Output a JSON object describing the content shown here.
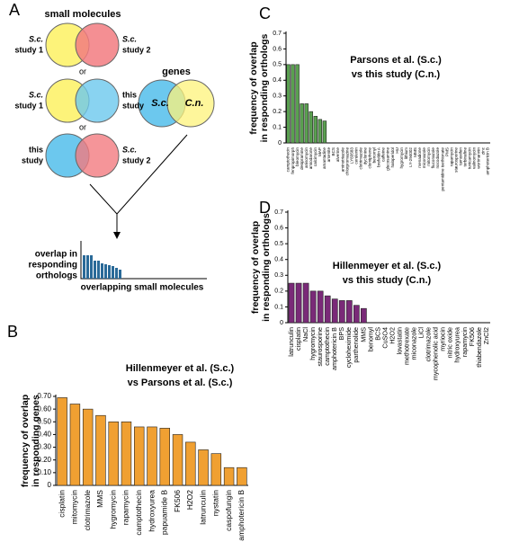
{
  "panel_a": {
    "label": "A",
    "small_molecules": "small molecules",
    "or": "or",
    "venn": [
      {
        "left": [
          "S.c.",
          "study 1"
        ],
        "right": [
          "S.c.",
          "study 2"
        ]
      },
      {
        "left": [
          "S.c.",
          "study 1"
        ],
        "right": [
          "this",
          "study"
        ]
      },
      {
        "left": [
          "this",
          "study"
        ],
        "right": [
          "S.c.",
          "study 2"
        ]
      }
    ],
    "genes": "genes",
    "genes_left": "S.c.",
    "genes_right": "C.n.",
    "ylabel": [
      "overlap in",
      "responding",
      "orthologs"
    ],
    "xlabel": "overlapping small molecules"
  },
  "chart_data": [
    {
      "type": "bar",
      "label": "B",
      "title": [
        "Hillenmeyer et al. (S.c.)",
        "vs Parsons et al. (S.c.)"
      ],
      "ylabel": [
        "frequency of overlap",
        "in responding genes"
      ],
      "color": "#f0a032",
      "categories": [
        "cisplatin",
        "mitomycin",
        "clotrimazole",
        "MMS",
        "hygromycin",
        "rapamycin",
        "camptothecin",
        "hydroxyurea",
        "papuamide B",
        "FK506",
        "H2O2",
        "latrunculin",
        "nystatin",
        "caspofungin",
        "amphotericin B"
      ],
      "category_colors": [
        "#3aa0d8",
        "#3aa0d8",
        "#3aa0d8",
        "#3aa0d8",
        "#3aa0d8",
        "#3aa0d8",
        "#3aa0d8",
        "#3aa0d8",
        "#3aa0d8",
        "#3aa0d8",
        "#3aa0d8",
        "#3aa0d8",
        "#3aa0d8",
        "#000000",
        "#000000"
      ],
      "values": [
        0.69,
        0.64,
        0.6,
        0.55,
        0.5,
        0.5,
        0.46,
        0.46,
        0.45,
        0.4,
        0.34,
        0.28,
        0.25,
        0.14,
        0.14
      ],
      "ylim": [
        0,
        0.7
      ],
      "yticks": [
        0,
        {
          "value": 0.1,
          "label": "0.10"
        },
        {
          "value": 0.2,
          "label": "0.20"
        },
        {
          "value": 0.3,
          "label": "0.30"
        },
        {
          "value": 0.4,
          "label": "0.40"
        },
        {
          "value": 0.5,
          "label": "0.50"
        },
        {
          "value": 0.6,
          "label": "0.60"
        },
        {
          "value": 0.7,
          "label": "0.70"
        }
      ]
    },
    {
      "type": "bar",
      "label": "C",
      "title": [
        "Parsons et al. (S.c.)",
        "vs this study (C.n.)"
      ],
      "ylabel": [
        "frequency of overlap",
        "in responding orthologs"
      ],
      "color": "#5aa050",
      "categories": [
        "camptothecin",
        "fenpropimorph",
        "bleomycin",
        "desipramine",
        "anisomycin",
        "amiodarone",
        "calcimycin",
        "MAP",
        "amantadine",
        "arsenite",
        "BCS",
        "alverine",
        "aminotriazole",
        "chlorpromazine",
        "LY83583",
        "cerulenin",
        "clotrimazole",
        "dyclonine",
        "clomiphene",
        "benomyl",
        "brefeldin A",
        "caffeine",
        "glucosamine",
        "haloperidol",
        "HU",
        "hygromycin",
        "lithium",
        "LY-294002",
        "MMS",
        "menadione",
        "miconazole",
        "mitomycin",
        "fluconazole",
        "nocodazole",
        "pentamidine isethionate",
        "PMS",
        "rapamycin",
        "staurosporine",
        "tamoxifen",
        "terbinafine",
        "tunicamycin",
        "valinomycin",
        "wortmannin",
        "zinc",
        "amphotericin B"
      ],
      "category_colors": [
        "#3aa0d8",
        "#3aa0d8",
        "#000000",
        "#000000",
        "#000000",
        "#000000",
        "#000000",
        "#000000",
        "#000000",
        "#000000",
        "#000000",
        "#000000",
        "#000000",
        "#000000",
        "#000000",
        "#000000",
        "#000000",
        "#000000",
        "#000000",
        "#000000",
        "#000000",
        "#000000",
        "#000000",
        "#000000",
        "#000000",
        "#000000",
        "#000000",
        "#000000",
        "#000000",
        "#000000",
        "#000000",
        "#000000",
        "#000000",
        "#000000",
        "#000000",
        "#000000",
        "#000000",
        "#000000",
        "#000000",
        "#000000",
        "#000000",
        "#000000",
        "#000000",
        "#000000",
        "#000000"
      ],
      "values": [
        0.5,
        0.5,
        0.5,
        0.25,
        0.25,
        0.2,
        0.17,
        0.15,
        0.14,
        0,
        0,
        0,
        0,
        0,
        0,
        0,
        0,
        0,
        0,
        0,
        0,
        0,
        0,
        0,
        0,
        0,
        0,
        0,
        0,
        0,
        0,
        0,
        0,
        0,
        0,
        0,
        0,
        0,
        0,
        0,
        0,
        0,
        0,
        0,
        0
      ],
      "ylim": [
        0,
        0.7
      ],
      "yticks": [
        0,
        0.1,
        0.2,
        0.3,
        0.4,
        0.5,
        0.6,
        0.7
      ]
    },
    {
      "type": "bar",
      "label": "D",
      "title": [
        "Hillenmeyer et al. (S.c.)",
        "vs this study (C.n.)"
      ],
      "ylabel": [
        "frequency of overlap",
        "in responding orthologs"
      ],
      "color": "#7a2a78",
      "categories": [
        "latrunculin",
        "cisplatin",
        "NaCl",
        "hygromycin",
        "staurosporine",
        "camptothecin",
        "amphotericin B",
        "BPS",
        "cycloheximide",
        "parthenolide",
        "MMS",
        "benomyl",
        "BCS",
        "CuSO4",
        "H2O2",
        "lovastatin",
        "methotrexate",
        "miconazole",
        "LiCl",
        "clotrimazole",
        "mycophenolic acid",
        "myriocin",
        "nitric oxide",
        "hydroxyurea",
        "rapamycin",
        "FK506",
        "thiabendazole",
        "ZnCl2"
      ],
      "category_colors": [
        "#3aa0d8",
        "#000000",
        "#000000",
        "#000000",
        "#000000",
        "#000000",
        "#000000",
        "#000000",
        "#000000",
        "#000000",
        "#000000",
        "#000000",
        "#000000",
        "#000000",
        "#000000",
        "#000000",
        "#000000",
        "#000000",
        "#000000",
        "#000000",
        "#000000",
        "#000000",
        "#000000",
        "#000000",
        "#000000",
        "#000000",
        "#000000",
        "#000000"
      ],
      "values": [
        0.25,
        0.25,
        0.25,
        0.2,
        0.2,
        0.17,
        0.15,
        0.14,
        0.14,
        0.11,
        0.09,
        0,
        0,
        0,
        0,
        0,
        0,
        0,
        0,
        0,
        0,
        0,
        0,
        0,
        0,
        0,
        0,
        0
      ],
      "ylim": [
        0,
        0.7
      ],
      "yticks": [
        0,
        0.1,
        0.2,
        0.3,
        0.4,
        0.5,
        0.6,
        0.7
      ]
    }
  ]
}
